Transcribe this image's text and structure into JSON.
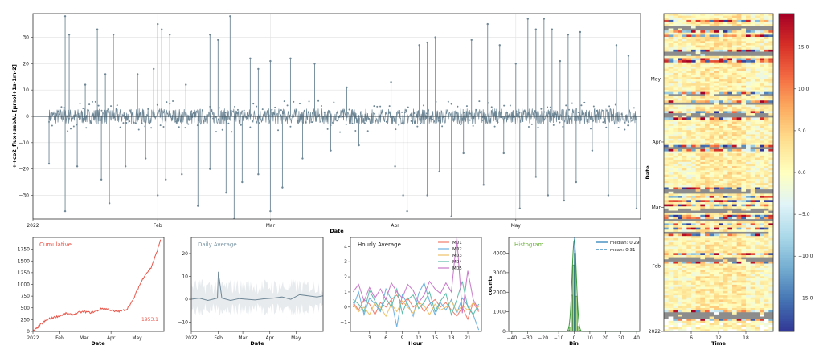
{
  "chart_data": [
    {
      "type": "line",
      "ylabel": "++co2_flux+sebAL [µmol+1s-1m-2]",
      "xlabel": "Date",
      "ylim": [
        -39,
        39
      ],
      "yticks": [
        -30,
        -20,
        -10,
        0,
        10,
        20,
        30
      ],
      "xticks": [
        "2022",
        "Feb",
        "Mar",
        "Apr",
        "May"
      ],
      "x_range": [
        "2022-01-01",
        "2022-06-01"
      ],
      "grid": true,
      "series": [
        {
          "color": "#6e8796",
          "x": [
            "2022-01-01",
            "2022-01-08",
            "2022-01-15",
            "2022-01-22",
            "2022-01-29",
            "2022-02-05",
            "2022-02-12",
            "2022-02-19",
            "2022-02-26",
            "2022-03-05",
            "2022-03-12",
            "2022-03-19",
            "2022-03-26",
            "2022-04-02",
            "2022-04-09",
            "2022-04-16",
            "2022-04-23",
            "2022-04-30",
            "2022-05-07",
            "2022-05-14",
            "2022-05-21",
            "2022-05-28"
          ],
          "y": [
            0.5,
            3.0,
            -2.0,
            1.0,
            -5.0,
            2.5,
            -3.0,
            1.5,
            0.5,
            -1.0,
            2.0,
            0.0,
            -0.5,
            1.0,
            -4.0,
            3.0,
            0.5,
            -1.5,
            4.0,
            -2.5,
            1.0,
            0.5
          ]
        }
      ],
      "spikes_up": [
        {
          "x": "2022-01-09",
          "y": 38
        },
        {
          "x": "2022-01-10",
          "y": 31
        },
        {
          "x": "2022-01-14",
          "y": 12
        },
        {
          "x": "2022-01-17",
          "y": 33
        },
        {
          "x": "2022-01-19",
          "y": 16
        },
        {
          "x": "2022-01-21",
          "y": 31
        },
        {
          "x": "2022-01-27",
          "y": 16
        },
        {
          "x": "2022-01-31",
          "y": 18
        },
        {
          "x": "2022-02-01",
          "y": 35
        },
        {
          "x": "2022-02-02",
          "y": 33
        },
        {
          "x": "2022-02-04",
          "y": 31
        },
        {
          "x": "2022-02-08",
          "y": 12
        },
        {
          "x": "2022-02-14",
          "y": 31
        },
        {
          "x": "2022-02-16",
          "y": 29
        },
        {
          "x": "2022-02-19",
          "y": 38
        },
        {
          "x": "2022-02-24",
          "y": 22
        },
        {
          "x": "2022-02-26",
          "y": 18
        },
        {
          "x": "2022-03-01",
          "y": 21
        },
        {
          "x": "2022-03-06",
          "y": 22
        },
        {
          "x": "2022-03-12",
          "y": 20
        },
        {
          "x": "2022-03-20",
          "y": 11
        },
        {
          "x": "2022-03-31",
          "y": 13
        },
        {
          "x": "2022-04-07",
          "y": 27
        },
        {
          "x": "2022-04-09",
          "y": 28
        },
        {
          "x": "2022-04-11",
          "y": 30
        },
        {
          "x": "2022-04-20",
          "y": 29
        },
        {
          "x": "2022-04-24",
          "y": 35
        },
        {
          "x": "2022-04-27",
          "y": 27
        },
        {
          "x": "2022-05-01",
          "y": 20
        },
        {
          "x": "2022-05-04",
          "y": 37
        },
        {
          "x": "2022-05-06",
          "y": 33
        },
        {
          "x": "2022-05-08",
          "y": 37
        },
        {
          "x": "2022-05-10",
          "y": 33
        },
        {
          "x": "2022-05-12",
          "y": 21
        },
        {
          "x": "2022-05-14",
          "y": 31
        },
        {
          "x": "2022-05-17",
          "y": 32
        },
        {
          "x": "2022-05-26",
          "y": 27
        },
        {
          "x": "2022-05-29",
          "y": 23
        }
      ],
      "spikes_down": [
        {
          "x": "2022-01-05",
          "y": -18
        },
        {
          "x": "2022-01-09",
          "y": -36
        },
        {
          "x": "2022-01-12",
          "y": -19
        },
        {
          "x": "2022-01-18",
          "y": -24
        },
        {
          "x": "2022-01-20",
          "y": -33
        },
        {
          "x": "2022-01-24",
          "y": -19
        },
        {
          "x": "2022-01-29",
          "y": -16
        },
        {
          "x": "2022-02-01",
          "y": -30
        },
        {
          "x": "2022-02-03",
          "y": -24
        },
        {
          "x": "2022-02-07",
          "y": -22
        },
        {
          "x": "2022-02-11",
          "y": -34
        },
        {
          "x": "2022-02-14",
          "y": -20
        },
        {
          "x": "2022-02-18",
          "y": -29
        },
        {
          "x": "2022-02-20",
          "y": -39
        },
        {
          "x": "2022-02-22",
          "y": -25
        },
        {
          "x": "2022-02-26",
          "y": -22
        },
        {
          "x": "2022-03-01",
          "y": -36
        },
        {
          "x": "2022-03-04",
          "y": -27
        },
        {
          "x": "2022-03-09",
          "y": -16
        },
        {
          "x": "2022-03-16",
          "y": -13
        },
        {
          "x": "2022-03-23",
          "y": -11
        },
        {
          "x": "2022-04-01",
          "y": -19
        },
        {
          "x": "2022-04-03",
          "y": -30
        },
        {
          "x": "2022-04-04",
          "y": -36
        },
        {
          "x": "2022-04-09",
          "y": -30
        },
        {
          "x": "2022-04-12",
          "y": -21
        },
        {
          "x": "2022-04-15",
          "y": -38
        },
        {
          "x": "2022-04-18",
          "y": -14
        },
        {
          "x": "2022-04-23",
          "y": -26
        },
        {
          "x": "2022-04-28",
          "y": -14
        },
        {
          "x": "2022-05-02",
          "y": -35
        },
        {
          "x": "2022-05-06",
          "y": -23
        },
        {
          "x": "2022-05-09",
          "y": -30
        },
        {
          "x": "2022-05-13",
          "y": -32
        },
        {
          "x": "2022-05-16",
          "y": -25
        },
        {
          "x": "2022-05-20",
          "y": -13
        },
        {
          "x": "2022-05-24",
          "y": -30
        },
        {
          "x": "2022-05-31",
          "y": -35
        }
      ]
    },
    {
      "type": "line",
      "title": "Cumulative",
      "xlabel": "Date",
      "ylim": [
        0,
        2000
      ],
      "yticks": [
        0,
        250,
        500,
        750,
        1000,
        1250,
        1500,
        1750
      ],
      "xticks": [
        "2022",
        "Feb",
        "Mar",
        "Apr",
        "May"
      ],
      "x_range": [
        "2022-01-01",
        "2022-06-01"
      ],
      "annotation": "1953.1",
      "series": [
        {
          "color": "#e8564a",
          "x": [
            "2022-01-01",
            "2022-01-05",
            "2022-01-10",
            "2022-01-15",
            "2022-01-20",
            "2022-01-25",
            "2022-02-01",
            "2022-02-08",
            "2022-02-15",
            "2022-02-22",
            "2022-03-01",
            "2022-03-08",
            "2022-03-15",
            "2022-03-22",
            "2022-03-29",
            "2022-04-05",
            "2022-04-12",
            "2022-04-19",
            "2022-04-26",
            "2022-05-03",
            "2022-05-10",
            "2022-05-17",
            "2022-05-24",
            "2022-05-28"
          ],
          "y": [
            0,
            60,
            150,
            220,
            270,
            300,
            330,
            380,
            350,
            400,
            420,
            400,
            430,
            490,
            470,
            420,
            430,
            470,
            650,
            950,
            1200,
            1350,
            1700,
            1953.1
          ]
        }
      ]
    },
    {
      "type": "line",
      "title": "Daily Average",
      "xlabel": "Date",
      "ylim": [
        -14,
        27
      ],
      "yticks": [
        -10,
        0,
        10,
        20
      ],
      "xticks": [
        "2022",
        "Feb",
        "Mar",
        "Apr",
        "May"
      ],
      "x_range": [
        "2022-01-01",
        "2022-06-01"
      ],
      "series": [
        {
          "color": "#6e8796",
          "x": [
            "2022-01-01",
            "2022-01-10",
            "2022-01-20",
            "2022-01-31",
            "2022-02-01",
            "2022-02-05",
            "2022-02-15",
            "2022-02-25",
            "2022-03-05",
            "2022-03-15",
            "2022-03-25",
            "2022-04-05",
            "2022-04-15",
            "2022-04-25",
            "2022-05-05",
            "2022-05-15",
            "2022-05-25",
            "2022-06-01"
          ],
          "y": [
            0,
            0.5,
            -0.5,
            0.5,
            12,
            0.5,
            -0.5,
            0.3,
            0,
            -0.3,
            0.2,
            0.5,
            1,
            0,
            2,
            1.5,
            1,
            1.5
          ]
        }
      ]
    },
    {
      "type": "line",
      "title": "Hourly Average",
      "xlabel": "Hour",
      "ylim": [
        -1.6,
        4.6
      ],
      "yticks": [
        -1,
        0,
        1,
        2,
        3,
        4
      ],
      "xticks": [
        3,
        6,
        9,
        12,
        15,
        18,
        21
      ],
      "x": [
        0,
        1,
        2,
        3,
        4,
        5,
        6,
        7,
        8,
        9,
        10,
        11,
        12,
        13,
        14,
        15,
        16,
        17,
        18,
        19,
        20,
        21,
        22,
        23
      ],
      "series": [
        {
          "name": "M01",
          "color": "#f07c6c",
          "values": [
            0.3,
            -0.2,
            0.5,
            0.2,
            -0.5,
            0.3,
            0.0,
            0.5,
            0.8,
            0.2,
            0.6,
            0.0,
            0.3,
            -0.3,
            0.2,
            0.5,
            0.0,
            0.3,
            -0.2,
            -0.6,
            0.0,
            -0.8,
            0.3,
            -0.3
          ]
        },
        {
          "name": "M02",
          "color": "#6ab0e0",
          "values": [
            0.0,
            1.0,
            -0.5,
            0.6,
            0.2,
            -0.3,
            1.2,
            0.5,
            -1.3,
            0.8,
            0.2,
            -0.6,
            0.9,
            1.6,
            0.4,
            -0.5,
            0.3,
            -0.2,
            0.5,
            -0.4,
            0.6,
            0.1,
            -0.5,
            -1.5
          ]
        },
        {
          "name": "M03",
          "color": "#f0c26a",
          "values": [
            0.2,
            -0.3,
            0.0,
            -0.5,
            0.3,
            0.0,
            -0.6,
            0.2,
            -0.3,
            0.4,
            0.0,
            -0.4,
            0.3,
            0.1,
            -0.5,
            0.2,
            -0.2,
            0.0,
            0.4,
            -0.3,
            0.1,
            -0.2,
            0.3,
            0.0
          ]
        },
        {
          "name": "M04",
          "color": "#5dbba8",
          "values": [
            0.5,
            0.2,
            -0.3,
            1.1,
            0.4,
            -0.2,
            0.6,
            0.0,
            1.2,
            -0.4,
            0.5,
            0.8,
            -0.1,
            0.3,
            1.0,
            -0.3,
            0.4,
            0.9,
            -0.5,
            0.5,
            1.7,
            0.0,
            -0.5,
            0.2
          ]
        },
        {
          "name": "M05",
          "color": "#c678c8",
          "values": [
            1.0,
            1.5,
            0.4,
            1.3,
            0.6,
            1.2,
            0.5,
            1.6,
            1.0,
            0.6,
            1.5,
            1.1,
            0.3,
            0.8,
            1.7,
            1.2,
            0.9,
            1.6,
            1.0,
            4.6,
            -0.4,
            2.4,
            0.5,
            -0.2
          ]
        }
      ]
    },
    {
      "type": "bar",
      "title": "Histogram",
      "xlabel": "Bin",
      "ylabel": "counts",
      "xlim": [
        -42,
        42
      ],
      "ylim": [
        0,
        4800
      ],
      "xticks": [
        -40,
        -30,
        -20,
        -10,
        0,
        10,
        20,
        30,
        40
      ],
      "yticks": [
        0,
        1000,
        2000,
        3000,
        4000
      ],
      "bins": [
        -4,
        -3,
        -2,
        -1,
        0,
        1,
        2,
        3
      ],
      "counts": [
        60,
        220,
        1850,
        3400,
        4000,
        1800,
        250,
        60
      ],
      "kde_peak": 4650,
      "legend": [
        {
          "label": "median: 0.29",
          "value": 0.29,
          "style": "solid",
          "color": "#1f77b4"
        },
        {
          "label": "mean: 0.31",
          "value": 0.31,
          "style": "dashed",
          "color": "#1f77b4"
        }
      ]
    },
    {
      "type": "heatmap",
      "xlabel": "Time",
      "ylabel": "Date",
      "xticks": [
        6,
        12,
        18
      ],
      "x_range": [
        0,
        24
      ],
      "yticks": [
        "2022",
        "Feb",
        "Mar",
        "Apr",
        "May"
      ],
      "colorbar_ticks": [
        15.0,
        10.0,
        5.0,
        0.0,
        -5.0,
        -10.0,
        -15.0
      ],
      "colorbar_range": [
        -19,
        19
      ],
      "colormap": "RdYlBu_r",
      "cmap_stops": [
        "#313695",
        "#4575b4",
        "#74add1",
        "#abd9e9",
        "#e0f3f8",
        "#ffffbf",
        "#fee090",
        "#fdae61",
        "#f46d43",
        "#d73027",
        "#a50026"
      ]
    }
  ]
}
